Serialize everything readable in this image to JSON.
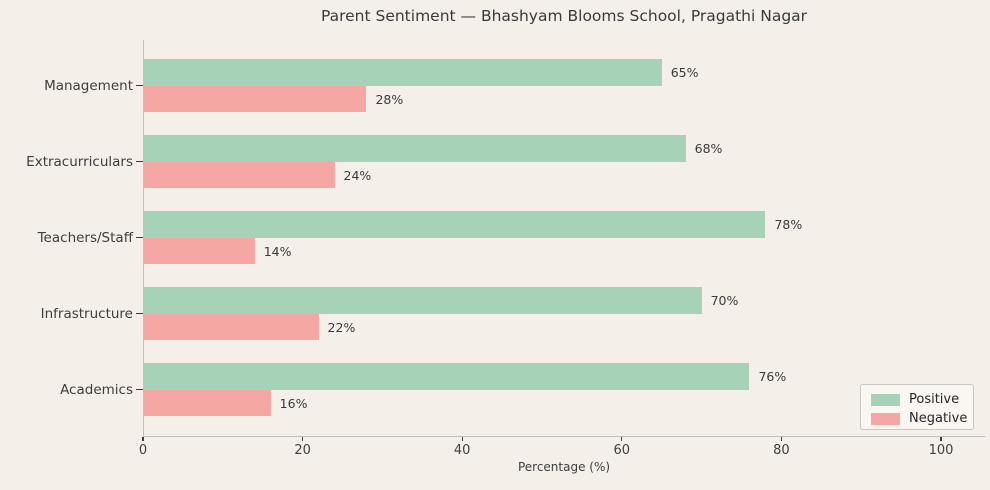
{
  "figure": {
    "background": "#f4efe9"
  },
  "chart_data": {
    "type": "bar",
    "orientation": "horizontal",
    "title": "Parent Sentiment — Bhashyam Blooms School, Pragathi Nagar",
    "categories": [
      "Management",
      "Extracurriculars",
      "Teachers/Staff",
      "Infrastructure",
      "Academics"
    ],
    "series": [
      {
        "name": "Positive",
        "color": "#a6d3b7",
        "values": [
          65,
          68,
          78,
          70,
          76
        ],
        "labels": [
          "65%",
          "68%",
          "78%",
          "70%",
          "76%"
        ]
      },
      {
        "name": "Negative",
        "color": "#f5a8a3",
        "values": [
          28,
          24,
          14,
          22,
          16
        ],
        "labels": [
          "28%",
          "24%",
          "14%",
          "22%",
          "16%"
        ]
      }
    ],
    "xlabel": "Percentage (%)",
    "x_ticks": [
      0,
      20,
      40,
      60,
      80,
      100
    ],
    "x_tick_labels": [
      "0",
      "20",
      "40",
      "60",
      "80",
      "100"
    ],
    "xlim": [
      0,
      105.5
    ],
    "grid": false,
    "legend": {
      "position": "lower right",
      "entries": [
        "Positive",
        "Negative"
      ]
    }
  }
}
